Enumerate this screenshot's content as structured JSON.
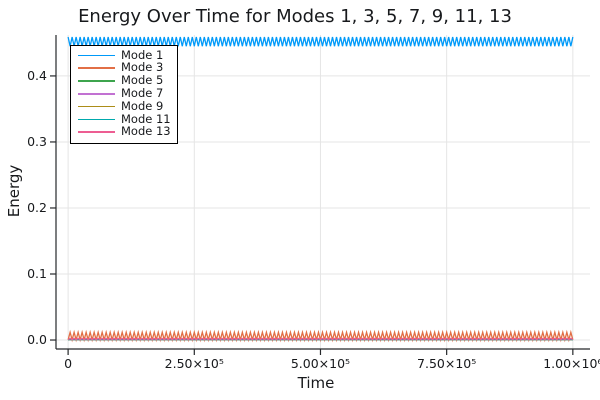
{
  "title": "Energy Over Time for Modes 1, 3, 5, 7, 9, 11, 13",
  "chart_data": {
    "type": "line",
    "title": "Energy Over Time for Modes 1, 3, 5, 7, 9, 11, 13",
    "xlabel": "Time",
    "ylabel": "Energy",
    "xlim": [
      0,
      1000000
    ],
    "ylim": [
      0,
      0.46
    ],
    "xlim_internal": [
      -24000,
      1034000
    ],
    "ylim_internal": [
      -0.0136,
      0.462
    ],
    "grid": true,
    "legend_position": "top-left",
    "x_ticks": [
      {
        "value": 0,
        "label": "0"
      },
      {
        "value": 250000,
        "label": "2.50×10⁵"
      },
      {
        "value": 500000,
        "label": "5.00×10⁵"
      },
      {
        "value": 750000,
        "label": "7.50×10⁵"
      },
      {
        "value": 1000000,
        "label": "1.00×10⁶"
      }
    ],
    "y_ticks": [
      {
        "value": 0.0,
        "label": "0.0"
      },
      {
        "value": 0.1,
        "label": "0.1"
      },
      {
        "value": 0.2,
        "label": "0.2"
      },
      {
        "value": 0.3,
        "label": "0.3"
      },
      {
        "value": 0.4,
        "label": "0.4"
      }
    ],
    "series": [
      {
        "name": "Mode 1",
        "color": "#009AF9",
        "waveform": "triangle",
        "mean": 0.452,
        "amplitude": 0.007,
        "cycles": 126,
        "start": "peak",
        "note": "oscillates ~0.445-0.459 across full time range"
      },
      {
        "name": "Mode 3",
        "color": "#E26F46",
        "waveform": "triangle",
        "mean": 0.006,
        "amplitude": 0.0057,
        "cycles": 126,
        "start": "trough",
        "note": "oscillates ~0.000-0.012"
      },
      {
        "name": "Mode 5",
        "color": "#3DA44D",
        "waveform": "triangle",
        "mean": 0.0004,
        "amplitude": 0.0002,
        "cycles": 126,
        "start": "trough",
        "note": "flat near zero"
      },
      {
        "name": "Mode 7",
        "color": "#C271D2",
        "waveform": "triangle",
        "mean": 0.0005,
        "amplitude": 0.0002,
        "cycles": 126,
        "start": "trough",
        "note": "flat near zero"
      },
      {
        "name": "Mode 9",
        "color": "#AC8D18",
        "waveform": "triangle",
        "mean": 0.0006,
        "amplitude": 0.0002,
        "cycles": 126,
        "start": "trough",
        "note": "flat near zero"
      },
      {
        "name": "Mode 11",
        "color": "#00A9AD",
        "waveform": "triangle",
        "mean": 0.0007,
        "amplitude": 0.0003,
        "cycles": 126,
        "start": "trough",
        "note": "flat near zero"
      },
      {
        "name": "Mode 13",
        "color": "#ED5D92",
        "waveform": "triangle",
        "mean": 0.0015,
        "amplitude": 0.0009,
        "cycles": 126,
        "start": "trough",
        "note": "thin band just above zero, drawn on top"
      }
    ]
  },
  "style_colors": {
    "grid": "#e5e5e5",
    "spine": "#26282b",
    "tick_label": "#17191c"
  }
}
